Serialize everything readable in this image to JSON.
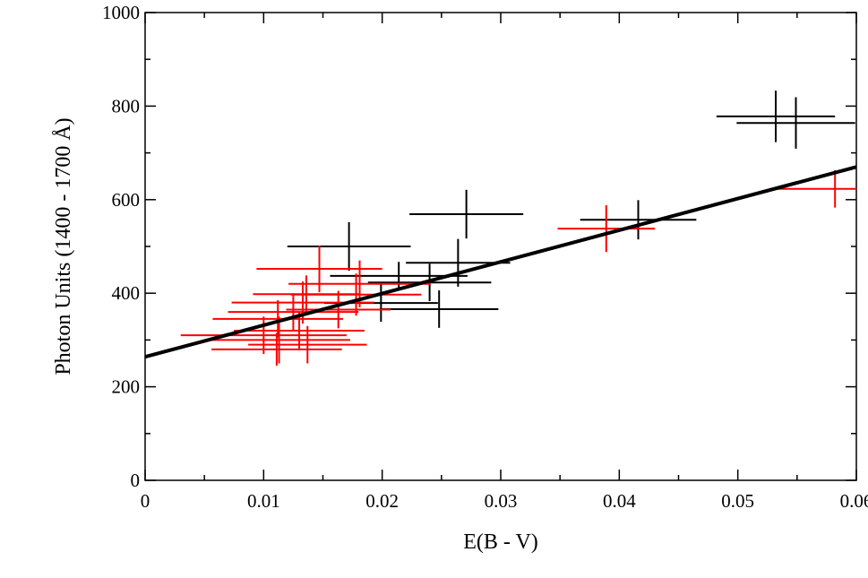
{
  "chart_data": {
    "type": "errorbar-scatter",
    "xlabel": "E(B - V)",
    "ylabel": "Photon Units (1400 - 1700 Å)",
    "xlim": [
      0,
      0.06
    ],
    "ylim": [
      0,
      1000
    ],
    "xticks": [
      0,
      0.01,
      0.02,
      0.03,
      0.04,
      0.05,
      0.06
    ],
    "yticks": [
      0,
      200,
      400,
      600,
      800,
      1000
    ],
    "xminorticks": [
      0.005,
      0.015,
      0.025,
      0.035,
      0.045,
      0.055
    ],
    "yminorticks": [
      100,
      300,
      500,
      700,
      900
    ],
    "series": [
      {
        "color": "#000000",
        "x": [
          0.0532,
          0.0549,
          0.0271,
          0.0172,
          0.0416,
          0.0264,
          0.024,
          0.0214,
          0.0248,
          0.0199
        ],
        "values": [
          778,
          764,
          569,
          500,
          557,
          465,
          423,
          437,
          366,
          379
        ],
        "xerr": [
          0.005,
          0.005,
          0.0048,
          0.0052,
          0.0049,
          0.0044,
          0.0052,
          0.0058,
          0.005,
          0.0048
        ],
        "yerr": [
          55,
          55,
          52,
          52,
          42,
          51,
          40,
          30,
          40,
          40
        ]
      },
      {
        "color": "#ff0000",
        "x": [
          0.0582,
          0.0389,
          0.0147,
          0.0181,
          0.0163,
          0.0136,
          0.0178,
          0.0133,
          0.0125,
          0.0112,
          0.0113,
          0.013,
          0.0137,
          0.01,
          0.0111
        ],
        "values": [
          623,
          538,
          452,
          420,
          365,
          398,
          397,
          380,
          360,
          345,
          300,
          320,
          290,
          310,
          280
        ],
        "xerr": [
          0.0052,
          0.0041,
          0.0053,
          0.006,
          0.0044,
          0.0045,
          0.0055,
          0.006,
          0.0055,
          0.0055,
          0.006,
          0.0055,
          0.005,
          0.007,
          0.0055
        ],
        "yerr": [
          40,
          50,
          50,
          50,
          40,
          40,
          45,
          45,
          40,
          40,
          50,
          40,
          40,
          40,
          35
        ]
      }
    ],
    "fit": {
      "color": "#000000",
      "x": [
        0,
        0.06
      ],
      "values": [
        264,
        670
      ]
    }
  }
}
